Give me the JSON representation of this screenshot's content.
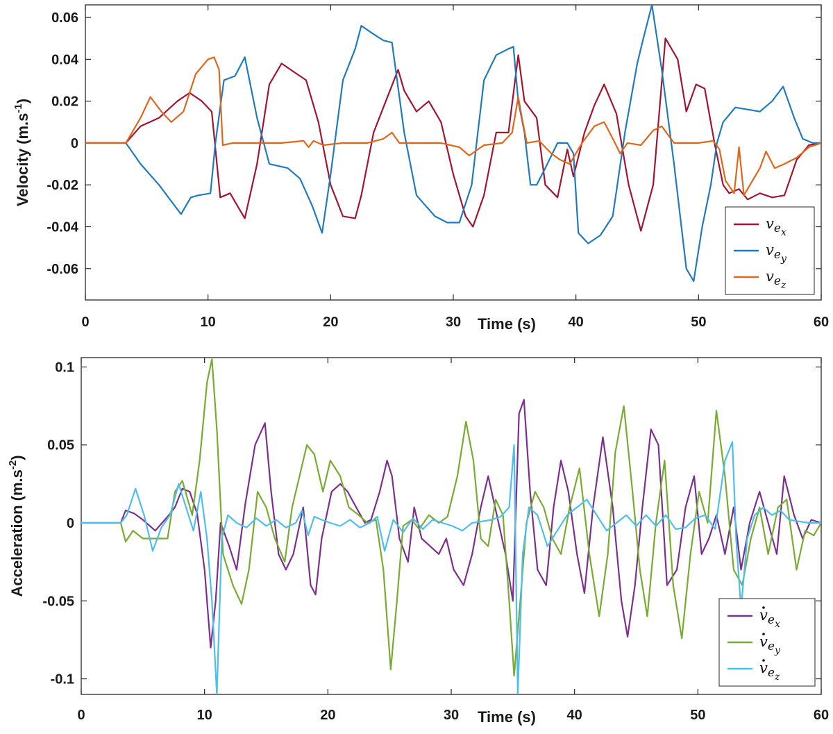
{
  "chart_data": [
    {
      "type": "line",
      "xlabel": "Time (s)",
      "ylabel": "Velocity (m.s",
      "ylabel_sup": "-1",
      "ylabel_close": ")",
      "xlim": [
        0,
        60
      ],
      "ylim": [
        -0.075,
        0.066
      ],
      "xticks": [
        "0",
        "10",
        "20",
        "30",
        "Time (s)",
        "40",
        "50",
        "60"
      ],
      "xtick_values": [
        0,
        10,
        20,
        30,
        40,
        50,
        60
      ],
      "xtick_labels": [
        "0",
        "10",
        "20",
        "30",
        "40",
        "50",
        "60"
      ],
      "ytick_values": [
        0.06,
        0.04,
        0.02,
        0,
        -0.02,
        -0.04,
        -0.06
      ],
      "ytick_labels": [
        "0.06",
        "0.04",
        "0.02",
        "0",
        "-0.02",
        "-0.04",
        "-0.06"
      ],
      "legend_position": "bottom-right",
      "series": [
        {
          "name": "v",
          "sub": "e",
          "subsub": "x",
          "dot": false,
          "color": "#a2142f",
          "x": [
            0,
            3.3,
            4.5,
            6,
            7.5,
            8.5,
            9.5,
            10.3,
            11,
            11.8,
            12.5,
            13,
            14,
            15,
            16,
            17,
            18,
            19,
            20,
            21,
            22,
            22.5,
            23.5,
            24.5,
            25.5,
            26,
            27,
            28,
            29,
            30,
            31,
            31.6,
            32.5,
            33.5,
            34.5,
            35.3,
            35.8,
            36.8,
            37.5,
            38.5,
            39.3,
            39.8,
            40.7,
            41.5,
            42.3,
            43.3,
            44.3,
            45.3,
            46.3,
            47.3,
            48.3,
            49,
            49.8,
            50.5,
            51.3,
            52,
            52.5,
            53.3,
            54,
            55,
            56,
            57,
            58,
            59,
            60
          ],
          "y": [
            0,
            0,
            0.008,
            0.012,
            0.02,
            0.024,
            0.02,
            0.015,
            -0.026,
            -0.024,
            -0.031,
            -0.036,
            -0.01,
            0.028,
            0.038,
            0.034,
            0.03,
            0.01,
            -0.02,
            -0.035,
            -0.036,
            -0.025,
            0.005,
            0.02,
            0.035,
            0.025,
            0.015,
            0.02,
            0.01,
            -0.015,
            -0.035,
            -0.04,
            -0.025,
            0.005,
            0.005,
            0.042,
            0.02,
            0.012,
            -0.02,
            -0.026,
            -0.003,
            -0.016,
            0.005,
            0.018,
            0.028,
            0.014,
            -0.02,
            -0.042,
            -0.02,
            0.05,
            0.04,
            0.015,
            0.028,
            0.026,
            0,
            -0.02,
            -0.024,
            -0.022,
            -0.027,
            -0.024,
            -0.026,
            -0.025,
            -0.008,
            -0.001,
            0
          ]
        },
        {
          "name": "v",
          "sub": "e",
          "subsub": "y",
          "dot": false,
          "color": "#1f7abf",
          "x": [
            0,
            3.3,
            4.5,
            6,
            7.8,
            8.6,
            9.2,
            10.2,
            10.6,
            11.3,
            12.2,
            13,
            14,
            15,
            16.5,
            17.5,
            18.5,
            19.3,
            20,
            21,
            22,
            22.5,
            23.5,
            24.3,
            25,
            26,
            27,
            28.5,
            29.5,
            30.5,
            31.5,
            32.5,
            33.5,
            34.5,
            34.9,
            35.3,
            35.8,
            36.3,
            36.8,
            37.5,
            38.5,
            39.3,
            39.8,
            40.2,
            41,
            42,
            43,
            44,
            45,
            45.5,
            46.2,
            47,
            48,
            49,
            49.6,
            50.3,
            51,
            51.5,
            52,
            53,
            54,
            55,
            56,
            56.9,
            57.8,
            58.5,
            59.3,
            60
          ],
          "y": [
            0,
            0,
            -0.01,
            -0.02,
            -0.034,
            -0.026,
            -0.025,
            -0.024,
            0,
            0.03,
            0.032,
            0.041,
            0.012,
            -0.01,
            -0.012,
            -0.017,
            -0.03,
            -0.043,
            -0.015,
            0.03,
            0.045,
            0.056,
            0.052,
            0.049,
            0.048,
            0.005,
            -0.025,
            -0.035,
            -0.038,
            -0.038,
            -0.02,
            0.03,
            0.042,
            0.045,
            0.046,
            0.02,
            0.005,
            -0.02,
            -0.02,
            -0.012,
            0.0,
            0.0,
            -0.005,
            -0.043,
            -0.048,
            -0.044,
            -0.035,
            0.005,
            0.038,
            0.05,
            0.066,
            0.035,
            -0.01,
            -0.06,
            -0.066,
            -0.04,
            -0.02,
            0.0,
            0.01,
            0.017,
            0.016,
            0.015,
            0.02,
            0.027,
            0.012,
            0.002,
            0,
            0
          ]
        },
        {
          "name": "v",
          "sub": "e",
          "subsub": "z",
          "dot": false,
          "color": "#e0661b",
          "x": [
            0,
            3.3,
            4.5,
            5.3,
            6.2,
            7,
            8,
            9,
            10,
            10.5,
            10.9,
            11.2,
            12,
            14,
            16,
            17.8,
            18.2,
            18.6,
            19.4,
            21,
            23,
            24.3,
            25,
            25.6,
            27,
            29,
            30.5,
            31.3,
            32.5,
            34,
            34.8,
            35.3,
            35.6,
            36,
            37,
            38,
            38.7,
            39.5,
            40.5,
            41.5,
            42.3,
            43.1,
            43.6,
            44.2,
            45.3,
            46.3,
            47,
            48,
            50,
            51.2,
            51.7,
            52.2,
            52.9,
            53.3,
            53.7,
            54.2,
            55,
            55.5,
            56.2,
            57,
            58,
            59,
            60
          ],
          "y": [
            0,
            0,
            0.012,
            0.022,
            0.015,
            0.01,
            0.015,
            0.033,
            0.04,
            0.041,
            0.035,
            -0.001,
            0,
            0,
            0,
            0.001,
            -0.002,
            0.001,
            -0.001,
            0,
            0,
            0.002,
            0.005,
            0,
            0,
            0,
            -0.002,
            -0.006,
            -0.001,
            0,
            0.005,
            0.022,
            0.012,
            0,
            0.001,
            -0.005,
            -0.008,
            -0.01,
            0.0,
            0.008,
            0.01,
            0.001,
            -0.005,
            0,
            -0.001,
            0.006,
            0.008,
            0,
            0,
            0.001,
            -0.003,
            -0.018,
            -0.024,
            -0.002,
            -0.025,
            -0.02,
            -0.012,
            -0.004,
            -0.012,
            -0.01,
            -0.007,
            -0.002,
            0
          ]
        }
      ]
    },
    {
      "type": "line",
      "xlabel": "Time (s)",
      "ylabel": "Acceleration (m.s",
      "ylabel_sup": "-2",
      "ylabel_close": ")",
      "xlim": [
        0,
        60
      ],
      "ylim": [
        -0.11,
        0.106
      ],
      "xtick_values": [
        0,
        10,
        20,
        30,
        40,
        50,
        60
      ],
      "xtick_labels": [
        "0",
        "10",
        "20",
        "30",
        "40",
        "50",
        "60"
      ],
      "ytick_values": [
        0.1,
        0.05,
        0,
        -0.05,
        -0.1
      ],
      "ytick_labels": [
        "0.1",
        "0.05",
        "0",
        "-0.05",
        "-0.1"
      ],
      "legend_position": "bottom-right",
      "series": [
        {
          "name": "v",
          "sub": "e",
          "subsub": "x",
          "dot": true,
          "color": "#7e2f8e",
          "x": [
            0,
            3.2,
            3.6,
            4.3,
            5,
            6,
            7,
            7.6,
            8.2,
            8.8,
            9.4,
            10,
            10.5,
            10.9,
            11.3,
            12,
            12.6,
            13.3,
            14.1,
            14.9,
            15.4,
            16,
            16.6,
            17.2,
            18,
            18.6,
            19,
            19.5,
            20.3,
            21,
            21.6,
            22.3,
            23,
            23.5,
            24.2,
            24.8,
            25.2,
            25.8,
            26.5,
            27,
            27.6,
            28.3,
            29,
            29.6,
            30.2,
            31,
            31.7,
            32.4,
            33,
            33.7,
            34.4,
            35,
            35.5,
            35.9,
            36.4,
            37,
            37.7,
            38.3,
            38.9,
            39.5,
            40.2,
            40.8,
            41.5,
            42.3,
            43.1,
            43.8,
            44.3,
            44.9,
            45.5,
            46.2,
            46.8,
            47.5,
            48.3,
            49,
            49.7,
            50.3,
            50.9,
            51.5,
            52.2,
            52.9,
            53.5,
            54.2,
            55,
            55.7,
            56.4,
            57,
            57.8,
            58.5,
            59.2,
            60
          ],
          "y": [
            0,
            0,
            0.008,
            0.006,
            0.002,
            -0.005,
            0.004,
            0.01,
            0.022,
            0.02,
            0.006,
            -0.03,
            -0.08,
            -0.05,
            0,
            -0.015,
            -0.03,
            0.012,
            0.05,
            0.064,
            0.02,
            -0.02,
            -0.03,
            -0.02,
            0.01,
            -0.04,
            -0.046,
            -0.01,
            0.02,
            0.025,
            0.02,
            0.01,
            0.0,
            0.002,
            0.02,
            0.04,
            0.03,
            -0.01,
            -0.025,
            0.01,
            -0.01,
            -0.015,
            -0.02,
            -0.01,
            -0.03,
            -0.04,
            -0.02,
            0.01,
            0.03,
            0.005,
            -0.02,
            -0.05,
            0.07,
            0.079,
            0.02,
            -0.03,
            -0.04,
            0.01,
            0.04,
            0.02,
            -0.02,
            -0.045,
            0.01,
            0.055,
            0.01,
            -0.05,
            -0.073,
            -0.04,
            0.01,
            0.06,
            0.05,
            -0.04,
            -0.03,
            0.01,
            0.03,
            -0.02,
            -0.01,
            0.005,
            -0.02,
            0.01,
            -0.03,
            0.0,
            0.02,
            0.0,
            -0.02,
            0.03,
            0.005,
            -0.01,
            0.002,
            0
          ]
        },
        {
          "name": "v",
          "sub": "e",
          "subsub": "y",
          "dot": true,
          "color": "#77ac30",
          "x": [
            0,
            3.2,
            3.6,
            4.2,
            5,
            6,
            7,
            7.6,
            8.2,
            9,
            9.6,
            10.2,
            10.6,
            11,
            11.5,
            12.3,
            13,
            13.6,
            14.3,
            15,
            15.7,
            16.5,
            17.1,
            17.7,
            18.3,
            18.9,
            19.6,
            20.2,
            21,
            21.7,
            22.5,
            23.2,
            23.9,
            24.5,
            25.1,
            25.6,
            26.1,
            26.8,
            27.4,
            28.2,
            29,
            29.7,
            30.5,
            31.2,
            31.8,
            32.4,
            33,
            33.6,
            34.2,
            34.7,
            35.1,
            35.6,
            36.1,
            36.8,
            37.5,
            38.2,
            38.9,
            39.6,
            40.4,
            41.2,
            42,
            42.7,
            43.3,
            44,
            44.7,
            45.3,
            45.9,
            46.6,
            47.3,
            48,
            48.7,
            49.4,
            50.1,
            50.8,
            51.5,
            52.2,
            52.9,
            53.6,
            54.3,
            55,
            55.7,
            56.5,
            57.2,
            58,
            58.7,
            59.4,
            60
          ],
          "y": [
            0,
            0,
            -0.012,
            -0.005,
            -0.01,
            -0.01,
            -0.01,
            0.02,
            0.027,
            0.005,
            0.04,
            0.09,
            0.105,
            0.06,
            -0.02,
            -0.04,
            -0.052,
            -0.03,
            0.02,
            0.01,
            -0.01,
            -0.025,
            0.01,
            0.03,
            0.05,
            0.044,
            0.02,
            0.04,
            0.03,
            0.01,
            0.005,
            0.0,
            0.002,
            -0.03,
            -0.094,
            -0.05,
            -0.002,
            0.002,
            -0.004,
            0.005,
            0.0,
            0.004,
            0.03,
            0.065,
            0.04,
            -0.01,
            -0.015,
            0.015,
            0.005,
            -0.05,
            -0.098,
            -0.05,
            0.0,
            0.02,
            0.01,
            -0.01,
            -0.02,
            0.01,
            0.035,
            -0.02,
            -0.06,
            -0.02,
            0.045,
            0.075,
            0.02,
            -0.03,
            -0.06,
            0.0,
            0.04,
            -0.04,
            -0.074,
            -0.02,
            0.02,
            0.0,
            0.072,
            0.03,
            -0.03,
            -0.04,
            -0.01,
            0.01,
            -0.02,
            0.01,
            0.015,
            -0.03,
            -0.005,
            -0.008,
            0
          ]
        },
        {
          "name": "v",
          "sub": "e",
          "subsub": "z",
          "dot": true,
          "color": "#4dbeee",
          "x": [
            0,
            3.2,
            3.7,
            4.4,
            5.1,
            5.8,
            6.5,
            7.2,
            7.9,
            8.5,
            9.1,
            9.7,
            10.2,
            10.6,
            11,
            11.4,
            11.9,
            12.6,
            13.4,
            14.2,
            15,
            15.8,
            16.6,
            17.4,
            17.9,
            18.4,
            18.9,
            19.5,
            20.2,
            21,
            21.8,
            22.6,
            23.4,
            24,
            24.6,
            25.3,
            26.1,
            26.9,
            27.7,
            28.5,
            29.3,
            30.1,
            30.9,
            31.7,
            32.5,
            33.3,
            34,
            34.7,
            35.1,
            35.4,
            35.8,
            36.3,
            37,
            37.8,
            38.6,
            39.4,
            40.2,
            41,
            41.8,
            42.6,
            43.4,
            44.2,
            45,
            45.8,
            46.6,
            47.4,
            48.2,
            49,
            49.8,
            50.6,
            51.4,
            52.2,
            52.8,
            53.1,
            53.5,
            54,
            54.6,
            55.3,
            56,
            56.7,
            57.4,
            58.2,
            59,
            60
          ],
          "y": [
            0,
            0,
            0.005,
            0.022,
            0.005,
            -0.018,
            -0.003,
            0.005,
            0.025,
            0.01,
            -0.005,
            0.02,
            -0.01,
            -0.05,
            -0.11,
            -0.01,
            0.005,
            0.0,
            -0.003,
            0.003,
            -0.002,
            0.002,
            -0.003,
            0.0,
            0.008,
            -0.008,
            0.004,
            0.002,
            0.0,
            -0.002,
            0.002,
            -0.003,
            0.0,
            0.004,
            -0.018,
            0.002,
            -0.006,
            0.003,
            -0.004,
            0.002,
            0.0,
            -0.002,
            -0.005,
            0.0,
            0.001,
            0.002,
            0.004,
            0.01,
            0.05,
            -0.11,
            -0.02,
            0.01,
            0.005,
            -0.015,
            -0.005,
            0.005,
            0.01,
            0.015,
            0.005,
            -0.005,
            0.0,
            0.005,
            -0.002,
            0.005,
            -0.002,
            0.005,
            -0.004,
            -0.003,
            0.003,
            0.005,
            -0.004,
            0.04,
            0.052,
            -0.01,
            -0.055,
            -0.01,
            0.005,
            0.01,
            0.005,
            0.008,
            0.002,
            0.001,
            0.0,
            0
          ]
        }
      ]
    }
  ]
}
